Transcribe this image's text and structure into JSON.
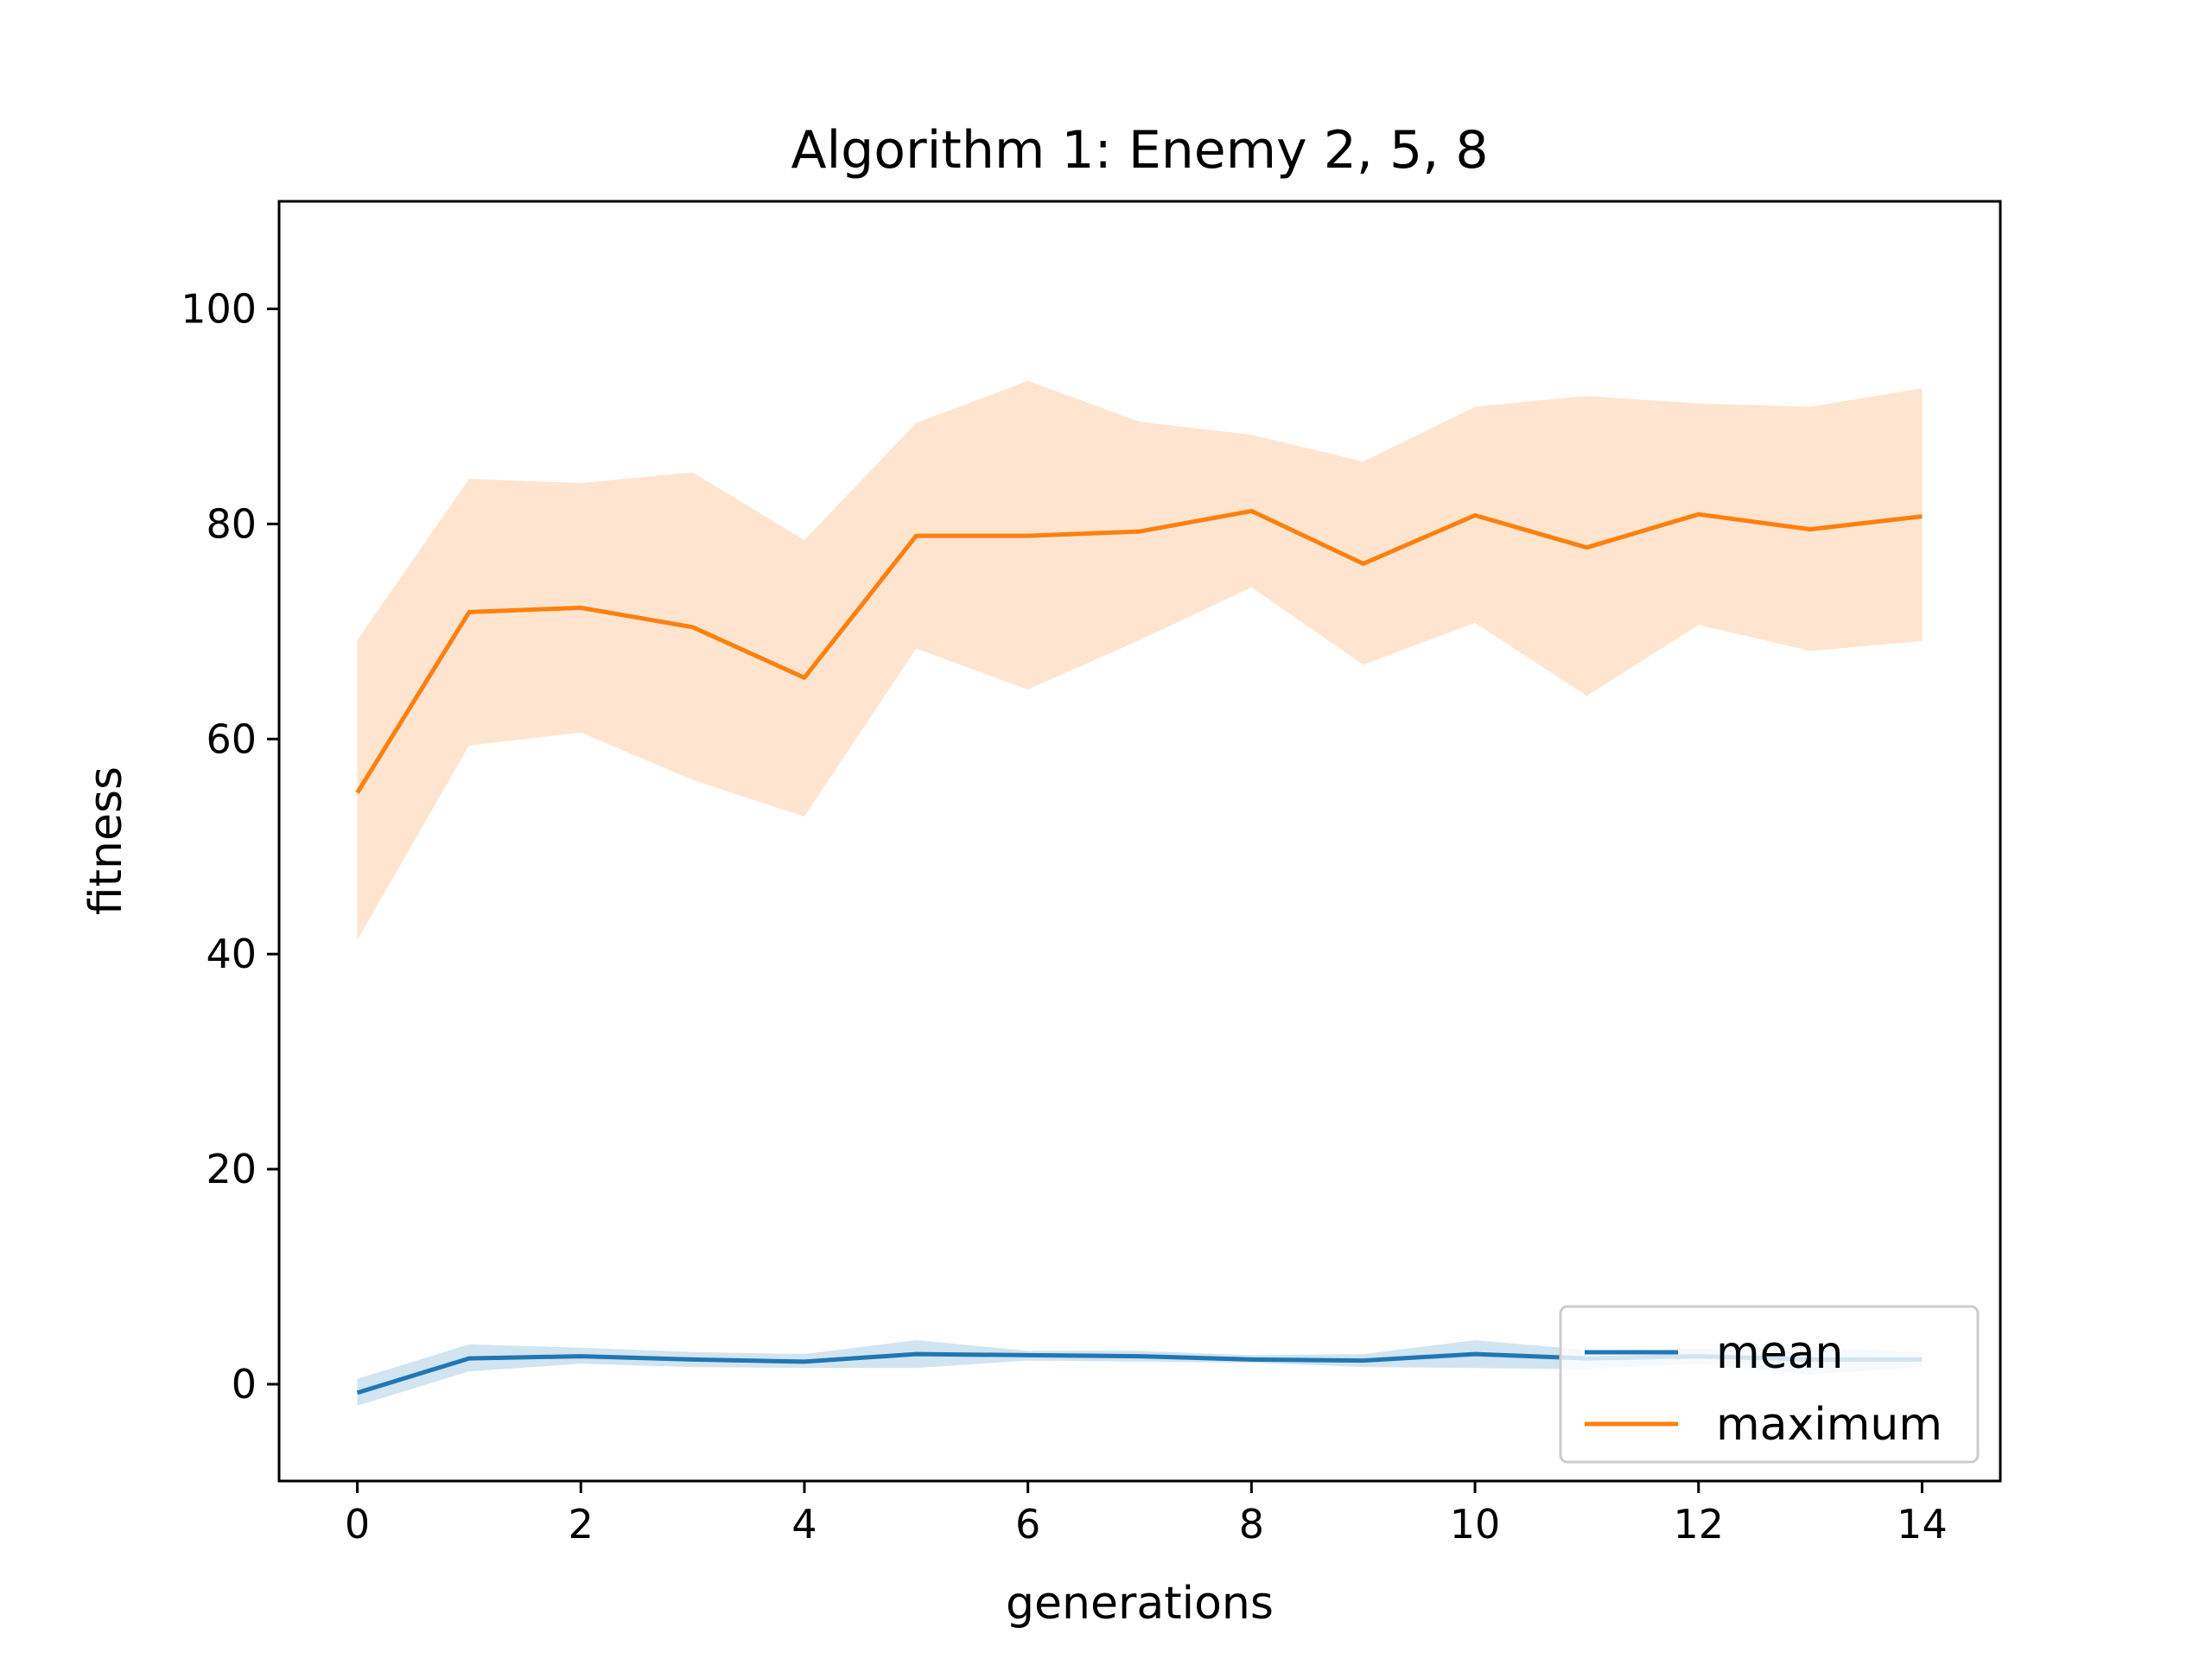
{
  "chart_data": {
    "type": "line",
    "title": "Algorithm 1: Enemy 2, 5, 8",
    "xlabel": "generations",
    "ylabel": "fitness",
    "xlim": [
      -0.7,
      14.7
    ],
    "ylim": [
      -9,
      110
    ],
    "xticks": [
      0,
      2,
      4,
      6,
      8,
      10,
      12,
      14
    ],
    "yticks": [
      0,
      20,
      40,
      60,
      80,
      100
    ],
    "grid": false,
    "legend_position": "lower-right",
    "x": [
      0,
      1,
      2,
      3,
      4,
      5,
      6,
      7,
      8,
      9,
      10,
      11,
      12,
      13,
      14
    ],
    "series": [
      {
        "name": "mean",
        "color": "#1f77b4",
        "band_color": "#1f77b4",
        "values": [
          -0.8,
          2.4,
          2.6,
          2.3,
          2.1,
          2.8,
          2.7,
          2.6,
          2.3,
          2.2,
          2.8,
          2.4,
          2.6,
          2.3,
          2.3
        ],
        "lower": [
          -2.0,
          1.2,
          1.9,
          1.6,
          1.5,
          1.5,
          2.2,
          2.1,
          2.0,
          1.6,
          1.5,
          1.4,
          1.9,
          0.9,
          1.6
        ],
        "upper": [
          0.5,
          3.7,
          3.4,
          3.0,
          2.8,
          4.1,
          3.1,
          3.1,
          2.7,
          2.8,
          4.1,
          3.2,
          3.3,
          3.4,
          3.0
        ]
      },
      {
        "name": "maximum",
        "color": "#ff7f0e",
        "band_color": "#ff7f0e",
        "values": [
          55.0,
          71.8,
          72.2,
          70.4,
          65.7,
          78.9,
          78.9,
          79.3,
          81.2,
          76.3,
          80.8,
          77.8,
          80.9,
          79.5,
          80.7
        ],
        "lower": [
          41.3,
          59.4,
          60.6,
          56.2,
          52.8,
          68.4,
          64.6,
          69.2,
          74.1,
          66.9,
          70.8,
          64.0,
          70.6,
          68.2,
          69.1
        ],
        "upper": [
          69.2,
          84.2,
          83.8,
          84.8,
          78.5,
          89.4,
          93.3,
          89.5,
          88.3,
          85.8,
          90.9,
          91.9,
          91.2,
          90.9,
          92.6
        ]
      }
    ]
  }
}
